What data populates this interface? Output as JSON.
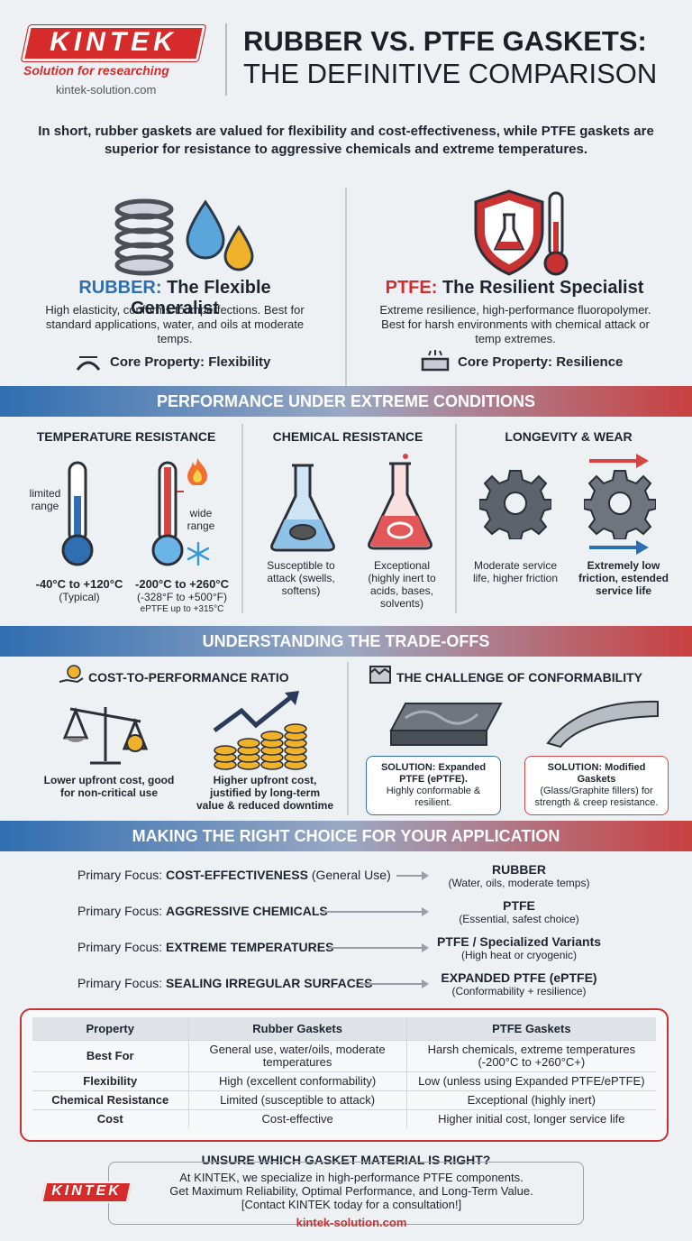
{
  "header": {
    "logo": "KINTEK",
    "tagline": "Solution for researching",
    "site": "kintek-solution.com",
    "title_line1": "RUBBER VS. PTFE GASKETS:",
    "title_line2": "THE DEFINITIVE COMPARISON"
  },
  "intro": "In short, rubber gaskets are valued for flexibility and cost-effectiveness, while PTFE gaskets are superior for resistance to aggressive chemicals and extreme temperatures.",
  "rubber": {
    "name": "RUBBER:",
    "subtitle": " The Flexible Generalist",
    "desc": "High elasticity, conforms to imperfections. Best for standard applications, water, and oils at moderate temps.",
    "core": "Core Property: Flexibility"
  },
  "ptfe": {
    "name": "PTFE:",
    "subtitle": " The Resilient Specialist",
    "desc": "Extreme resilience, high-performance fluoropolymer. Best for harsh environments with chemical attack or temp extremes.",
    "core": "Core Property: Resilience"
  },
  "performance": {
    "banner": "PERFORMANCE UNDER EXTREME CONDITIONS",
    "temp_title": "TEMPERATURE RESISTANCE",
    "limited": "limited range",
    "wide": "wide range",
    "rubber_temp": "-40°C to +120°C",
    "rubber_temp_note": "(Typical)",
    "ptfe_temp": "-200°C to +260°C",
    "ptfe_temp_f": "(-328°F to +500°F)",
    "eptfe_note": "ePTFE up to +315°C",
    "chem_title": "CHEMICAL RESISTANCE",
    "rubber_chem": "Susceptible to attack (swells, softens)",
    "ptfe_chem": "Exceptional (highly inert to acids, bases, solvents)",
    "wear_title": "LONGEVITY & WEAR",
    "rubber_wear": "Moderate service life, higher friction",
    "ptfe_wear": "Extremely low friction, estended service life"
  },
  "tradeoffs": {
    "banner": "UNDERSTANDING THE TRADE-OFFS",
    "cost_title": "COST-TO-PERFORMANCE RATIO",
    "cost_low": "Lower upfront cost, good for non-critical use",
    "cost_high": "Higher upfront cost, justified by long-term value & reduced downtime",
    "conf_title": "THE CHALLENGE OF CONFORMABILITY",
    "sol1_head": "SOLUTION: Expanded PTFE (ePTFE).",
    "sol1_body": "Highly conformable & resilient.",
    "sol2_head": "SOLUTION: Modified Gaskets",
    "sol2_body": "(Glass/Graphite fillers) for strength & creep resistance."
  },
  "choice": {
    "banner": "MAKING THE RIGHT CHOICE FOR YOUR APPLICATION",
    "prefix": "Primary Focus: ",
    "rows": [
      {
        "focus": "COST-EFFECTIVENESS",
        "extra": " (General Use)",
        "result": "RUBBER",
        "note": "(Water, oils, moderate temps)"
      },
      {
        "focus": "AGGRESSIVE CHEMICALS",
        "extra": "",
        "result": "PTFE",
        "note": "(Essential, safest choice)"
      },
      {
        "focus": "EXTREME TEMPERATURES",
        "extra": "",
        "result": "PTFE / Specialized Variants",
        "note": "(High heat or cryogenic)"
      },
      {
        "focus": "SEALING IRREGULAR SURFACES",
        "extra": "",
        "result": "EXPANDED PTFE (ePTFE)",
        "note": "(Conformability + resilience)"
      }
    ]
  },
  "table": {
    "headers": [
      "Property",
      "Rubber Gaskets",
      "PTFE Gaskets"
    ],
    "rows": [
      [
        "Best For",
        "General use, water/oils, moderate temperatures",
        "Harsh chemicals, extreme temperatures (-200°C to +260°C+)"
      ],
      [
        "Flexibility",
        "High (excellent conformability)",
        "Low (unless using Expanded PTFE/ePTFE)"
      ],
      [
        "Chemical Resistance",
        "Limited (susceptible to attack)",
        "Exceptional (highly inert)"
      ],
      [
        "Cost",
        "Cost-effective",
        "Higher initial cost, longer service life"
      ]
    ]
  },
  "cta": {
    "question": "UNSURE WHICH GASKET MATERIAL IS RIGHT?",
    "line1": "At KINTEK, we specialize in high-performance PTFE components.",
    "line2": "Get Maximum Reliability, Optimal Performance, and Long-Term Value.",
    "line3": "[Contact KINTEK today for a consultation!]",
    "site": "kintek-solution.com",
    "logo": "KINTEK"
  },
  "colors": {
    "rubber_blue": "#2f6eb0",
    "ptfe_red": "#d62b2b"
  }
}
